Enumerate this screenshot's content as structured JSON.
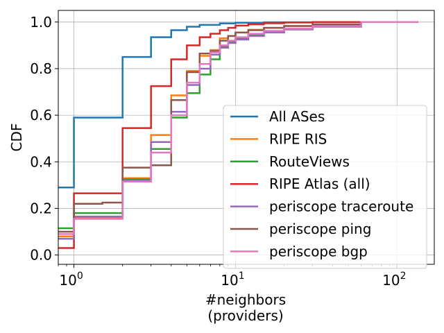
{
  "chart_data": {
    "type": "line",
    "step": true,
    "x_scale": "log",
    "xlim": [
      0.8,
      170
    ],
    "ylim": [
      -0.04,
      1.05
    ],
    "xlabel": "#neighbors",
    "xlabel2": "(providers)",
    "ylabel": "CDF",
    "x_ticks": [
      {
        "value": 1,
        "base": "10",
        "exp": "0"
      },
      {
        "value": 10,
        "base": "10",
        "exp": "1"
      },
      {
        "value": 100,
        "base": "10",
        "exp": "2"
      }
    ],
    "y_ticks": [
      {
        "value": 0.0,
        "label": "0.0"
      },
      {
        "value": 0.2,
        "label": "0.2"
      },
      {
        "value": 0.4,
        "label": "0.4"
      },
      {
        "value": 0.6,
        "label": "0.6"
      },
      {
        "value": 0.8,
        "label": "0.8"
      },
      {
        "value": 1.0,
        "label": "1.0"
      }
    ],
    "grid": true,
    "legend_position": "lower-right",
    "series": [
      {
        "name": "All ASes",
        "color": "#1f77b4",
        "x": [
          0.8,
          1,
          2,
          3,
          4,
          5,
          6,
          8,
          10,
          15,
          30,
          135
        ],
        "y": [
          0.29,
          0.59,
          0.85,
          0.935,
          0.965,
          0.98,
          0.988,
          0.994,
          0.997,
          0.999,
          1.0,
          1.0
        ]
      },
      {
        "name": "RIPE RIS",
        "color": "#ff7f0e",
        "x": [
          0.8,
          1,
          2,
          3,
          4,
          5,
          6,
          7,
          8,
          9,
          10,
          12,
          15,
          20,
          30,
          60,
          135
        ],
        "y": [
          0.08,
          0.16,
          0.33,
          0.515,
          0.685,
          0.79,
          0.855,
          0.88,
          0.93,
          0.94,
          0.955,
          0.967,
          0.975,
          0.983,
          0.99,
          1.0,
          1.0
        ]
      },
      {
        "name": "RouteViews",
        "color": "#2ca02c",
        "x": [
          0.8,
          1,
          2,
          3,
          4,
          5,
          6,
          7,
          8,
          9,
          10,
          12,
          15,
          20,
          30,
          60,
          135
        ],
        "y": [
          0.115,
          0.18,
          0.325,
          0.455,
          0.59,
          0.695,
          0.775,
          0.84,
          0.895,
          0.915,
          0.93,
          0.945,
          0.958,
          0.97,
          0.985,
          1.0,
          1.0
        ]
      },
      {
        "name": "RIPE Atlas (all)",
        "color": "#d62728",
        "x": [
          0.8,
          1,
          2,
          3,
          4,
          5,
          6,
          7,
          8,
          9,
          10,
          12,
          15,
          20,
          30,
          60,
          135
        ],
        "y": [
          0.03,
          0.265,
          0.545,
          0.725,
          0.84,
          0.9,
          0.935,
          0.95,
          0.965,
          0.975,
          0.985,
          0.99,
          0.995,
          0.998,
          1.0,
          1.0,
          1.0
        ]
      },
      {
        "name": "periscope traceroute",
        "color": "#9467bd",
        "x": [
          0.8,
          1,
          2,
          3,
          4,
          5,
          6,
          7,
          8,
          9,
          10,
          12,
          15,
          20,
          30,
          60,
          135
        ],
        "y": [
          0.07,
          0.165,
          0.32,
          0.485,
          0.615,
          0.73,
          0.8,
          0.86,
          0.89,
          0.91,
          0.925,
          0.94,
          0.955,
          0.968,
          0.98,
          1.0,
          1.0
        ]
      },
      {
        "name": "periscope ping",
        "color": "#8c564b",
        "x": [
          0.8,
          1,
          1.5,
          2,
          3,
          4,
          5,
          6,
          7,
          8,
          9,
          10,
          12,
          15,
          20,
          30,
          60,
          135
        ],
        "y": [
          0.1,
          0.22,
          0.225,
          0.375,
          0.385,
          0.665,
          0.785,
          0.865,
          0.875,
          0.92,
          0.94,
          0.955,
          0.965,
          0.975,
          0.983,
          0.99,
          1.0,
          1.0
        ]
      },
      {
        "name": "periscope bgp",
        "color": "#e377c2",
        "x": [
          0.8,
          1,
          2,
          3,
          4,
          5,
          6,
          7,
          8,
          9,
          10,
          12,
          15,
          20,
          30,
          60,
          135
        ],
        "y": [
          0.09,
          0.155,
          0.315,
          0.44,
          0.6,
          0.74,
          0.82,
          0.87,
          0.9,
          0.92,
          0.935,
          0.95,
          0.962,
          0.972,
          0.983,
          1.0,
          1.0
        ]
      }
    ]
  }
}
